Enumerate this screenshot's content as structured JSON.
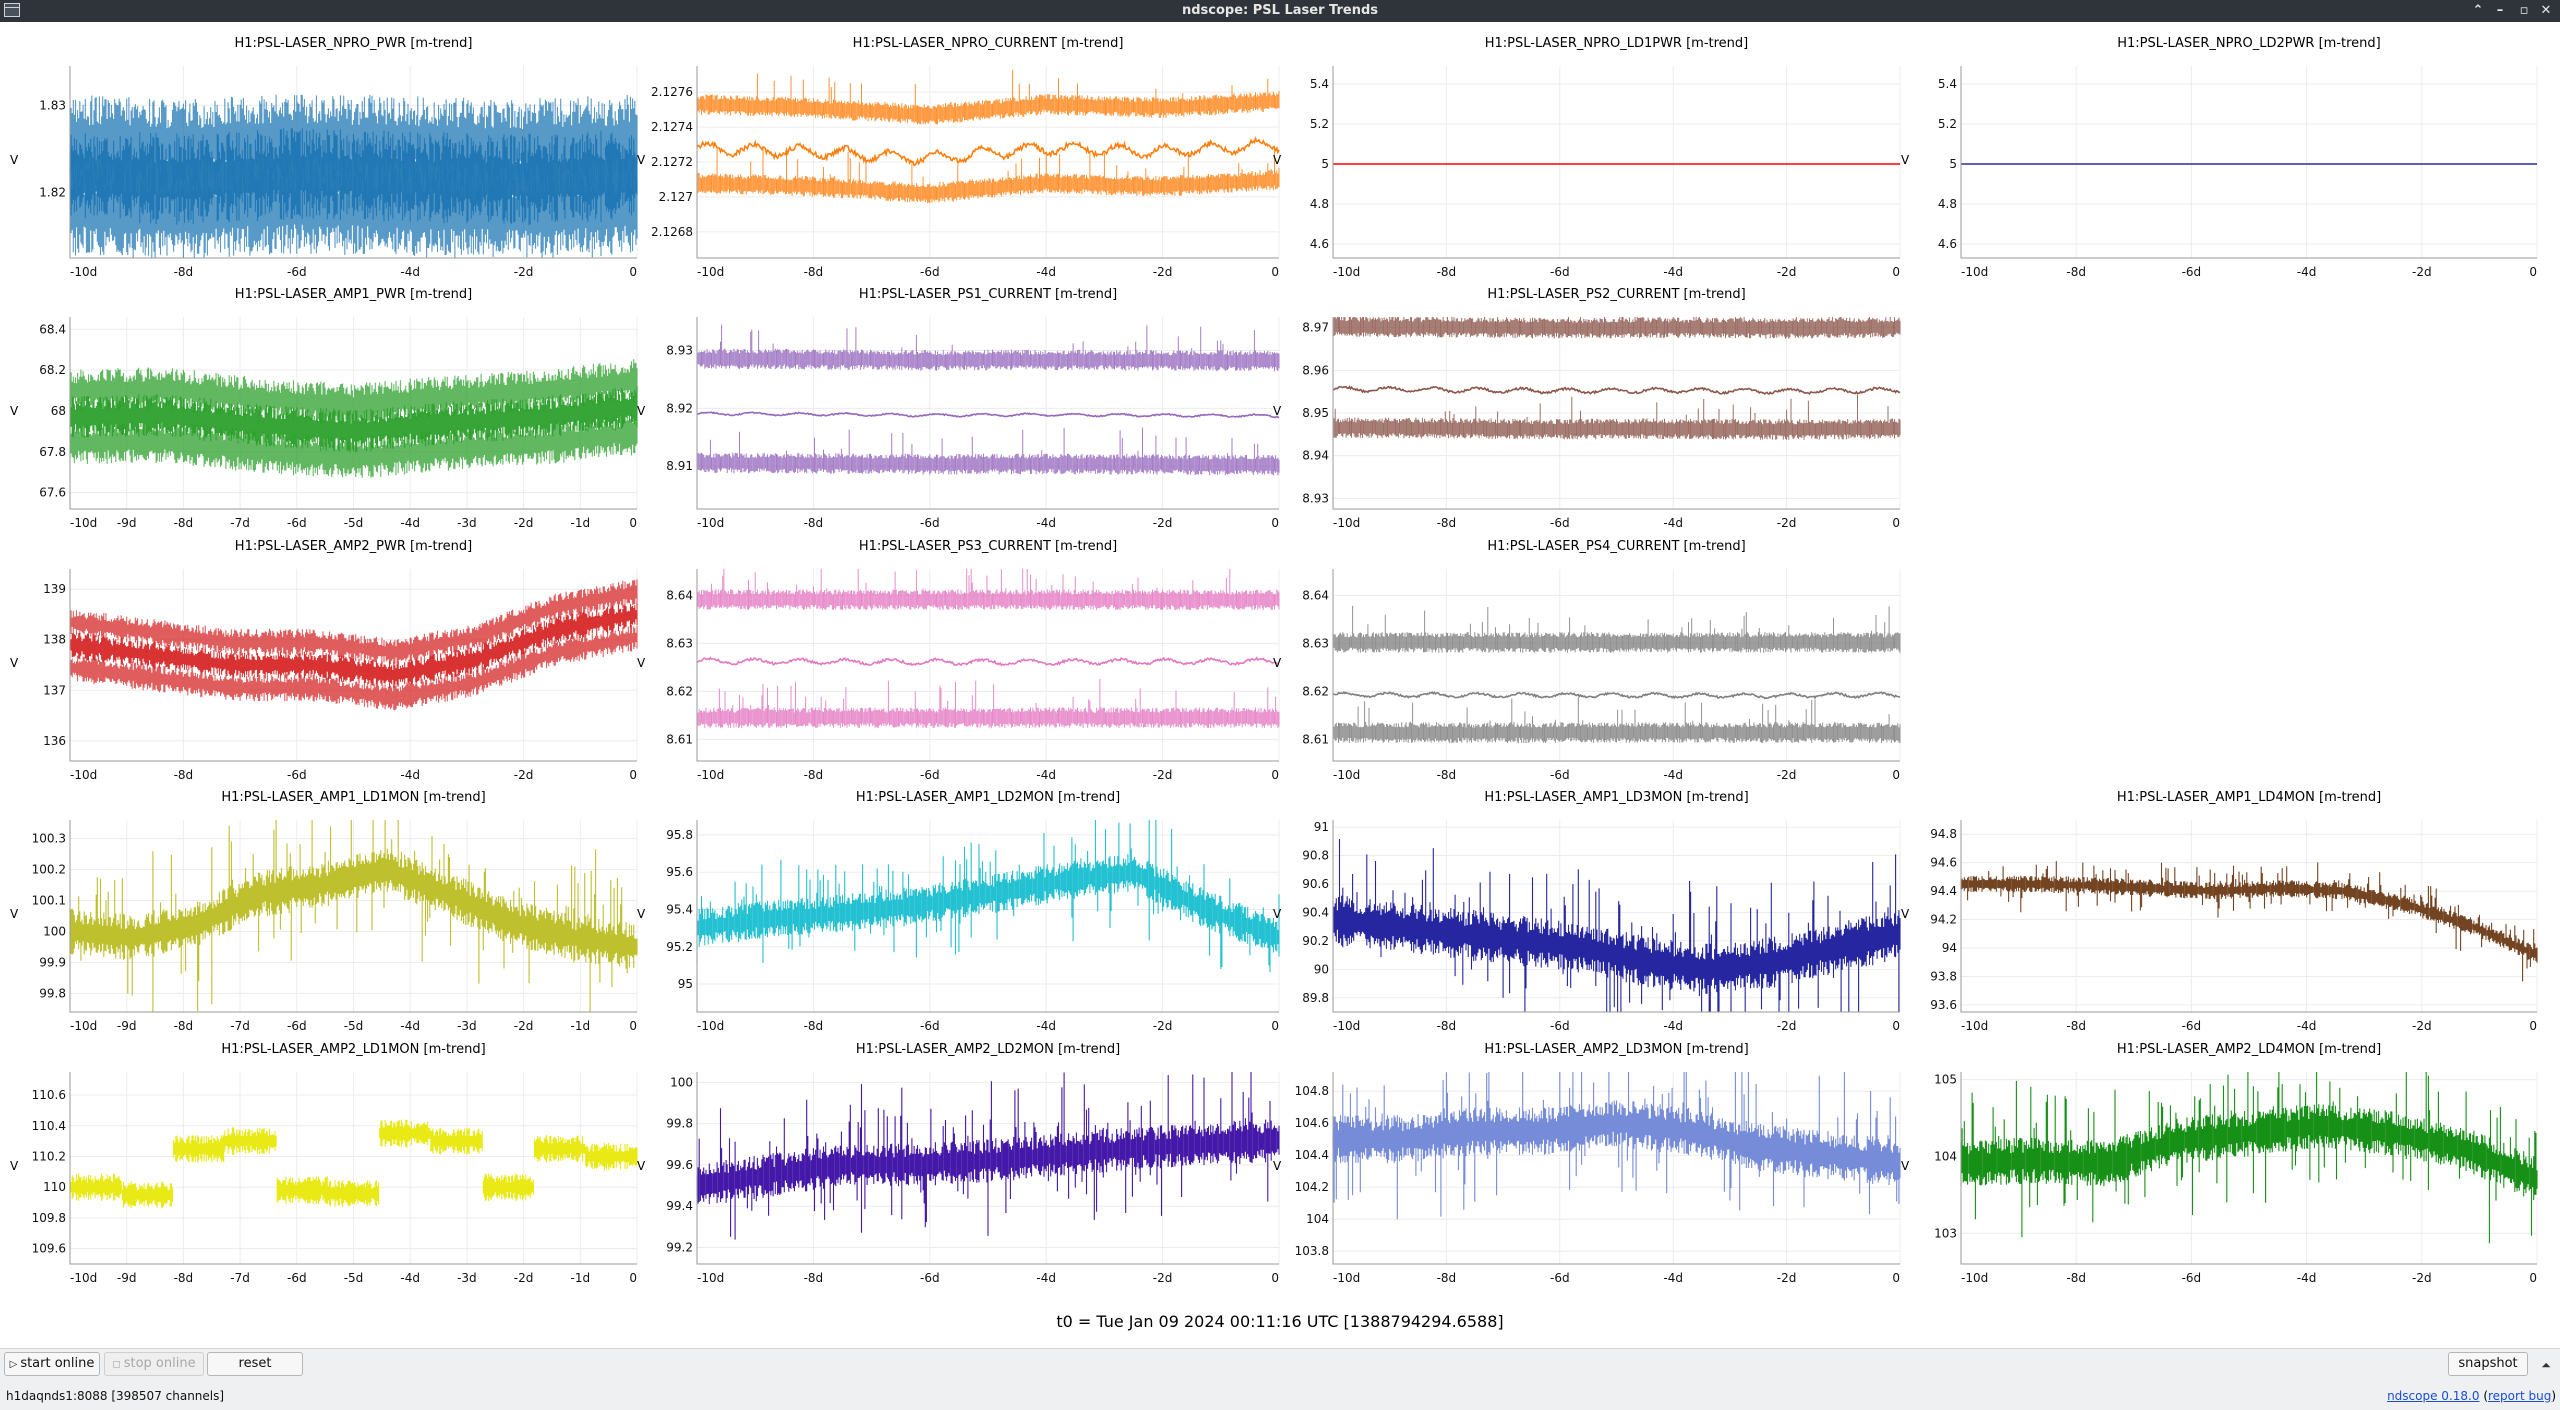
{
  "window": {
    "title": "ndscope: PSL Laser Trends",
    "controls": [
      "chevron-up-icon",
      "minimize-icon",
      "maximize-icon",
      "close-icon"
    ]
  },
  "t0_label": "t0 = Tue Jan 09 2024 00:11:16 UTC [1388794294.6588]",
  "toolbar": {
    "start_online": "start online",
    "stop_online": "stop online",
    "reset": "reset",
    "snapshot": "snapshot",
    "collapse_glyph": "⏶"
  },
  "status": {
    "server": "h1daqnds1:8088  [398507 channels]",
    "version_link": "ndscope 0.18.0",
    "report_prefix": "(",
    "report_link": "report bug",
    "report_suffix": ")"
  },
  "chart_data": [
    {
      "id": "npro_pwr",
      "title": "H1:PSL-LASER_NPRO_PWR [m-trend]",
      "ylabel": "V",
      "color": "#1f77b4",
      "type": "line",
      "style": "noise",
      "yticks": [
        "1.83",
        "1.82"
      ],
      "ytick_values": [
        1.83,
        1.82
      ],
      "ylim": [
        1.8125,
        1.8345
      ],
      "xticks": [
        "-10d",
        "-8d",
        "-6d",
        "-4d",
        "-2d",
        "0"
      ],
      "xlim": [
        -10,
        0
      ],
      "center": [
        1.822,
        1.8215,
        1.8222,
        1.8218,
        1.8215,
        1.822
      ],
      "bands": [
        0,
        0.004,
        -0.004
      ],
      "amp": 0.0035
    },
    {
      "id": "npro_current",
      "title": "H1:PSL-LASER_NPRO_CURRENT [m-trend]",
      "ylabel": "V",
      "color": "#ff7f0e",
      "type": "line",
      "style": "bands",
      "yticks": [
        "2.1276",
        "2.1274",
        "2.1272",
        "2.127",
        "2.1268"
      ],
      "ytick_values": [
        2.1276,
        2.1274,
        2.1272,
        2.127,
        2.1268
      ],
      "ylim": [
        2.12665,
        2.12775
      ],
      "xticks": [
        "-10d",
        "-8d",
        "-6d",
        "-4d",
        "-2d",
        "0"
      ],
      "xlim": [
        -10,
        0
      ],
      "center": [
        2.12728,
        2.12726,
        2.12722,
        2.12728,
        2.12726,
        2.1273
      ],
      "bands": [
        0.00025,
        -0.0002
      ],
      "amp": 3e-05
    },
    {
      "id": "npro_ld1pwr",
      "title": "H1:PSL-LASER_NPRO_LD1PWR [m-trend]",
      "ylabel": "V",
      "color": "#ff0000",
      "type": "line",
      "style": "flat",
      "yticks": [
        "5.4",
        "5.2",
        "5",
        "4.8",
        "4.6"
      ],
      "ytick_values": [
        5.4,
        5.2,
        5,
        4.8,
        4.6
      ],
      "ylim": [
        4.53,
        5.49
      ],
      "xticks": [
        "-10d",
        "-8d",
        "-6d",
        "-4d",
        "-2d",
        "0"
      ],
      "xlim": [
        -10,
        0
      ],
      "center": [
        5,
        5
      ],
      "bands": [
        0
      ],
      "amp": 0
    },
    {
      "id": "npro_ld2pwr",
      "title": "H1:PSL-LASER_NPRO_LD2PWR [m-trend]",
      "ylabel": "V",
      "color": "#2b2b9a",
      "type": "line",
      "style": "flat",
      "yticks": [
        "5.4",
        "5.2",
        "5",
        "4.8",
        "4.6"
      ],
      "ytick_values": [
        5.4,
        5.2,
        5,
        4.8,
        4.6
      ],
      "ylim": [
        4.53,
        5.49
      ],
      "xticks": [
        "-10d",
        "-8d",
        "-6d",
        "-4d",
        "-2d",
        "0"
      ],
      "xlim": [
        -10,
        0
      ],
      "center": [
        5,
        5
      ],
      "bands": [
        0
      ],
      "amp": 0
    },
    {
      "id": "amp1_pwr",
      "title": "H1:PSL-LASER_AMP1_PWR [m-trend]",
      "ylabel": "V",
      "color": "#2ca02c",
      "type": "line",
      "style": "noise",
      "yticks": [
        "68.4",
        "68.2",
        "68",
        "67.8",
        "67.6"
      ],
      "ytick_values": [
        68.4,
        68.2,
        68,
        67.8,
        67.6
      ],
      "ylim": [
        67.52,
        68.46
      ],
      "xticks": [
        "-10d",
        "-9d",
        "-8d",
        "-7d",
        "-6d",
        "-5d",
        "-4d",
        "-3d",
        "-2d",
        "-1d",
        "0"
      ],
      "xlim": [
        -10,
        0
      ],
      "center": [
        67.97,
        67.98,
        67.93,
        67.9,
        67.94,
        67.97,
        68.02
      ],
      "bands": [
        0,
        0.13,
        -0.13
      ],
      "amp": 0.07
    },
    {
      "id": "ps1_current",
      "title": "H1:PSL-LASER_PS1_CURRENT [m-trend]",
      "ylabel": "V",
      "color": "#9467bd",
      "type": "line",
      "style": "bands",
      "yticks": [
        "8.93",
        "8.92",
        "8.91"
      ],
      "ytick_values": [
        8.93,
        8.92,
        8.91
      ],
      "ylim": [
        8.9026,
        8.9358
      ],
      "xticks": [
        "-10d",
        "-8d",
        "-6d",
        "-4d",
        "-2d",
        "0"
      ],
      "xlim": [
        -10,
        0
      ],
      "center": [
        8.9191,
        8.919,
        8.9188,
        8.9189,
        8.9188,
        8.9187
      ],
      "bands": [
        0.0095,
        -0.0085
      ],
      "amp": 0.0002
    },
    {
      "id": "ps2_current",
      "title": "H1:PSL-LASER_PS2_CURRENT [m-trend]",
      "ylabel": "V",
      "color": "#8c564b",
      "type": "line",
      "style": "bands",
      "yticks": [
        "8.97",
        "8.96",
        "8.95",
        "8.94",
        "8.93"
      ],
      "ytick_values": [
        8.97,
        8.96,
        8.95,
        8.94,
        8.93
      ],
      "ylim": [
        8.9275,
        8.9725
      ],
      "xticks": [
        "-10d",
        "-8d",
        "-6d",
        "-4d",
        "-2d",
        "0"
      ],
      "xlim": [
        -10,
        0
      ],
      "center": [
        8.9556,
        8.9554,
        8.9552,
        8.9553,
        8.9551,
        8.9554
      ],
      "bands": [
        0.0147,
        -0.009
      ],
      "amp": 0.0005
    },
    {
      "id": "ps3_current",
      "title": "H1:PSL-LASER_PS3_CURRENT [m-trend]",
      "ylabel": "V",
      "color": "#e377c2",
      "type": "line",
      "style": "bands",
      "yticks": [
        "8.64",
        "8.63",
        "8.62",
        "8.61"
      ],
      "ytick_values": [
        8.64,
        8.63,
        8.62,
        8.61
      ],
      "ylim": [
        8.6055,
        8.6455
      ],
      "xticks": [
        "-10d",
        "-8d",
        "-6d",
        "-4d",
        "-2d",
        "0"
      ],
      "xlim": [
        -10,
        0
      ],
      "center": [
        8.6263,
        8.6262,
        8.6261,
        8.6262,
        8.6263
      ],
      "bands": [
        8.6391,
        8.6145
      ],
      "bands_abs": true,
      "amp": 0.0005
    },
    {
      "id": "ps4_current",
      "title": "H1:PSL-LASER_PS4_CURRENT [m-trend]",
      "ylabel": "V",
      "color": "#7f7f7f",
      "type": "line",
      "style": "bands",
      "yticks": [
        "8.64",
        "8.63",
        "8.62",
        "8.61"
      ],
      "ytick_values": [
        8.64,
        8.63,
        8.62,
        8.61
      ],
      "ylim": [
        8.6055,
        8.6455
      ],
      "xticks": [
        "-10d",
        "-8d",
        "-6d",
        "-4d",
        "-2d",
        "0"
      ],
      "xlim": [
        -10,
        0
      ],
      "center": [
        8.6193,
        8.6192,
        8.6192,
        8.6191,
        8.6193
      ],
      "bands": [
        8.6302,
        8.6114
      ],
      "bands_abs": true,
      "amp": 0.0004
    },
    {
      "id": "amp2_pwr",
      "title": "H1:PSL-LASER_AMP2_PWR [m-trend]",
      "ylabel": "V",
      "color": "#d62728",
      "type": "line",
      "style": "noise",
      "yticks": [
        "139",
        "138",
        "137",
        "136"
      ],
      "ytick_values": [
        139,
        138,
        137,
        136
      ],
      "ylim": [
        135.6,
        139.4
      ],
      "xticks": [
        "-10d",
        "-8d",
        "-6d",
        "-4d",
        "-2d",
        "0"
      ],
      "xlim": [
        -10,
        0
      ],
      "center": [
        137.9,
        137.7,
        137.5,
        137.5,
        137.3,
        137.6,
        138.2,
        138.5
      ],
      "bands": [
        0,
        0.45,
        -0.45
      ],
      "amp": 0.18
    },
    {
      "id": "amp1_ld1mon",
      "title": "H1:PSL-LASER_AMP1_LD1MON [m-trend]",
      "ylabel": "V",
      "color": "#bcbd22",
      "type": "line",
      "style": "spiky",
      "yticks": [
        "100.3",
        "100.2",
        "100.1",
        "100",
        "99.9",
        "99.8"
      ],
      "ytick_values": [
        100.3,
        100.2,
        100.1,
        100,
        99.9,
        99.8
      ],
      "ylim": [
        99.74,
        100.36
      ],
      "xticks": [
        "-10d",
        "-9d",
        "-8d",
        "-7d",
        "-6d",
        "-5d",
        "-4d",
        "-3d",
        "-2d",
        "-1d",
        "0"
      ],
      "xlim": [
        -10,
        0
      ],
      "center": [
        100.0,
        99.98,
        100.02,
        100.12,
        100.15,
        100.2,
        100.12,
        100.03,
        99.98,
        99.95
      ],
      "bands": [
        0
      ],
      "amp": 0.05
    },
    {
      "id": "amp1_ld2mon",
      "title": "H1:PSL-LASER_AMP1_LD2MON [m-trend]",
      "ylabel": "V",
      "color": "#17becf",
      "type": "line",
      "style": "spiky",
      "yticks": [
        "95.8",
        "95.6",
        "95.4",
        "95.2",
        "95"
      ],
      "ytick_values": [
        95.8,
        95.6,
        95.4,
        95.2,
        95
      ],
      "ylim": [
        94.85,
        95.88
      ],
      "xticks": [
        "-10d",
        "-8d",
        "-6d",
        "-4d",
        "-2d",
        "0"
      ],
      "xlim": [
        -10,
        0
      ],
      "center": [
        95.3,
        95.35,
        95.38,
        95.42,
        95.48,
        95.55,
        95.6,
        95.4,
        95.25
      ],
      "bands": [
        0
      ],
      "amp": 0.07
    },
    {
      "id": "amp1_ld3mon",
      "title": "H1:PSL-LASER_AMP1_LD3MON [m-trend]",
      "ylabel": "V",
      "color": "#1a1a9c",
      "type": "line",
      "style": "spiky",
      "yticks": [
        "91",
        "90.8",
        "90.6",
        "90.4",
        "90.2",
        "90",
        "89.8"
      ],
      "ytick_values": [
        91,
        90.8,
        90.6,
        90.4,
        90.2,
        90,
        89.8
      ],
      "ylim": [
        89.7,
        91.05
      ],
      "xticks": [
        "-10d",
        "-8d",
        "-6d",
        "-4d",
        "-2d",
        "0"
      ],
      "xlim": [
        -10,
        0
      ],
      "center": [
        90.35,
        90.3,
        90.25,
        90.2,
        90.15,
        90.05,
        90.0,
        90.05,
        90.15,
        90.25
      ],
      "bands": [
        0
      ],
      "amp": 0.12
    },
    {
      "id": "amp1_ld4mon",
      "title": "H1:PSL-LASER_AMP1_LD4MON [m-trend]",
      "ylabel": "V",
      "color": "#6b3a16",
      "type": "line",
      "style": "spiky",
      "yticks": [
        "94.8",
        "94.6",
        "94.4",
        "94.2",
        "94",
        "93.8",
        "93.6"
      ],
      "ytick_values": [
        94.8,
        94.6,
        94.4,
        94.2,
        94,
        93.8,
        93.6
      ],
      "ylim": [
        93.55,
        94.9
      ],
      "xticks": [
        "-10d",
        "-8d",
        "-6d",
        "-4d",
        "-2d",
        "0"
      ],
      "xlim": [
        -10,
        0
      ],
      "center": [
        94.45,
        94.45,
        94.44,
        94.42,
        94.4,
        94.42,
        94.4,
        94.3,
        94.15,
        93.95
      ],
      "bands": [
        0
      ],
      "amp": 0.04
    },
    {
      "id": "amp2_ld1mon",
      "title": "H1:PSL-LASER_AMP2_LD1MON [m-trend]",
      "ylabel": "V",
      "color": "#e8e80a",
      "type": "line",
      "style": "steps",
      "yticks": [
        "110.6",
        "110.4",
        "110.2",
        "110",
        "109.8",
        "109.6"
      ],
      "ytick_values": [
        110.6,
        110.4,
        110.2,
        110,
        109.8,
        109.6
      ],
      "ylim": [
        109.5,
        110.75
      ],
      "xticks": [
        "-10d",
        "-9d",
        "-8d",
        "-7d",
        "-6d",
        "-5d",
        "-4d",
        "-3d",
        "-2d",
        "-1d",
        "0"
      ],
      "xlim": [
        -10,
        0
      ],
      "center": [
        110.0,
        109.95,
        110.25,
        110.3,
        109.98,
        109.96,
        110.35,
        110.3,
        110.0,
        110.25,
        110.2
      ],
      "bands": [
        0
      ],
      "amp": 0.06
    },
    {
      "id": "amp2_ld2mon",
      "title": "H1:PSL-LASER_AMP2_LD2MON [m-trend]",
      "ylabel": "V",
      "color": "#3a0ca3",
      "type": "line",
      "style": "spiky",
      "yticks": [
        "100",
        "99.8",
        "99.6",
        "99.4",
        "99.2"
      ],
      "ytick_values": [
        100,
        99.8,
        99.6,
        99.4,
        99.2
      ],
      "ylim": [
        99.12,
        100.05
      ],
      "xticks": [
        "-10d",
        "-8d",
        "-6d",
        "-4d",
        "-2d",
        "0"
      ],
      "xlim": [
        -10,
        0
      ],
      "center": [
        99.5,
        99.55,
        99.6,
        99.6,
        99.62,
        99.65,
        99.68,
        99.7,
        99.72
      ],
      "bands": [
        0
      ],
      "amp": 0.07
    },
    {
      "id": "amp2_ld3mon",
      "title": "H1:PSL-LASER_AMP2_LD3MON [m-trend]",
      "ylabel": "V",
      "color": "#6f86d6",
      "type": "line",
      "style": "spiky",
      "yticks": [
        "104.8",
        "104.6",
        "104.4",
        "104.2",
        "104",
        "103.8"
      ],
      "ytick_values": [
        104.8,
        104.6,
        104.4,
        104.2,
        104,
        103.8
      ],
      "ylim": [
        103.72,
        104.92
      ],
      "xticks": [
        "-10d",
        "-8d",
        "-6d",
        "-4d",
        "-2d",
        "0"
      ],
      "xlim": [
        -10,
        0
      ],
      "center": [
        104.5,
        104.5,
        104.55,
        104.55,
        104.6,
        104.55,
        104.45,
        104.4,
        104.35
      ],
      "bands": [
        0
      ],
      "amp": 0.1
    },
    {
      "id": "amp2_ld4mon",
      "title": "H1:PSL-LASER_AMP2_LD4MON [m-trend]",
      "ylabel": "V",
      "color": "#0a8a0a",
      "type": "line",
      "style": "spiky",
      "yticks": [
        "105",
        "104",
        "103"
      ],
      "ytick_values": [
        105,
        104,
        103
      ],
      "ylim": [
        102.6,
        105.1
      ],
      "xticks": [
        "-10d",
        "-8d",
        "-6d",
        "-4d",
        "-2d",
        "0"
      ],
      "xlim": [
        -10,
        0
      ],
      "center": [
        103.9,
        103.95,
        103.9,
        104.2,
        104.3,
        104.4,
        104.3,
        104.1,
        103.7
      ],
      "bands": [
        0
      ],
      "amp": 0.2
    }
  ]
}
